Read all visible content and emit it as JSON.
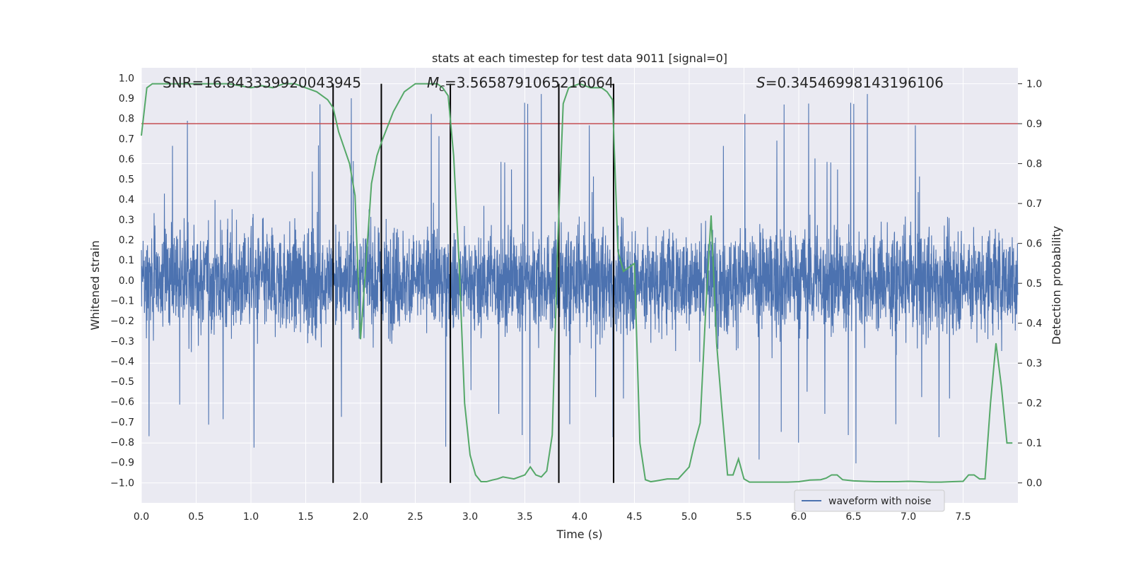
{
  "chart_data": {
    "type": "line",
    "title": "stats at each timestep for test data 9011 [signal=0]",
    "xlabel": "Time (s)",
    "ylabel_left": "Whitened strain",
    "ylabel_right": "Detection probability",
    "xlim": [
      0.0,
      8.0
    ],
    "ylim_left": [
      -1.1,
      1.05
    ],
    "ylim_right": [
      -0.05,
      1.04
    ],
    "xticks": [
      "0.0",
      "0.5",
      "1.0",
      "1.5",
      "2.0",
      "2.5",
      "3.0",
      "3.5",
      "4.0",
      "4.5",
      "5.0",
      "5.5",
      "6.0",
      "6.5",
      "7.0",
      "7.5"
    ],
    "yticks_left": [
      "1.0",
      "0.9",
      "0.8",
      "0.7",
      "0.6",
      "0.5",
      "0.4",
      "0.3",
      "0.2",
      "0.1",
      "0.0",
      "-0.1",
      "-0.2",
      "-0.3",
      "-0.4",
      "-0.5",
      "-0.6",
      "-0.7",
      "-0.8",
      "-0.9",
      "-1.0"
    ],
    "yticks_right": [
      "1.0",
      "0.9",
      "0.8",
      "0.7",
      "0.6",
      "0.5",
      "0.4",
      "0.3",
      "0.2",
      "0.1",
      "0.0"
    ],
    "grid": true,
    "legend_position": "lower-right",
    "annotations": {
      "snr": "SNR=16.843339920043945",
      "mc_symbol": "M",
      "mc_sub": "c",
      "mc_value": "=3.5658791065216064",
      "s_symbol": "S",
      "s_value": "=0.34546998143196106"
    },
    "threshold": {
      "value": 0.9,
      "axis": "right",
      "color": "#c44e52"
    },
    "vertical_lines": [
      1.75,
      2.19,
      2.82,
      3.81,
      4.31
    ],
    "series": [
      {
        "name": "waveform with noise",
        "axis": "left",
        "color": "#4c72b0",
        "style": "noise",
        "typical_amplitude": 0.4,
        "max_amplitude": 0.95
      },
      {
        "name": "detection probability",
        "axis": "right",
        "color": "#55a868",
        "show_in_legend": false,
        "x": [
          0.0,
          0.05,
          0.1,
          0.2,
          0.3,
          0.4,
          0.5,
          0.6,
          0.7,
          0.8,
          0.9,
          1.0,
          1.1,
          1.2,
          1.3,
          1.4,
          1.5,
          1.6,
          1.7,
          1.75,
          1.8,
          1.85,
          1.9,
          1.95,
          2.0,
          2.05,
          2.1,
          2.15,
          2.2,
          2.3,
          2.4,
          2.5,
          2.6,
          2.7,
          2.75,
          2.8,
          2.85,
          2.9,
          2.95,
          3.0,
          3.05,
          3.1,
          3.15,
          3.2,
          3.25,
          3.3,
          3.4,
          3.5,
          3.55,
          3.6,
          3.65,
          3.7,
          3.75,
          3.8,
          3.85,
          3.9,
          4.0,
          4.1,
          4.2,
          4.25,
          4.3,
          4.35,
          4.4,
          4.45,
          4.5,
          4.55,
          4.6,
          4.65,
          4.7,
          4.8,
          4.9,
          5.0,
          5.05,
          5.1,
          5.15,
          5.2,
          5.25,
          5.3,
          5.35,
          5.4,
          5.45,
          5.5,
          5.55,
          5.6,
          5.7,
          5.8,
          5.9,
          6.0,
          6.1,
          6.2,
          6.25,
          6.3,
          6.35,
          6.4,
          6.5,
          6.6,
          6.7,
          6.8,
          6.9,
          7.0,
          7.1,
          7.2,
          7.3,
          7.4,
          7.5,
          7.55,
          7.6,
          7.65,
          7.7,
          7.75,
          7.8,
          7.85,
          7.9,
          7.95
        ],
        "y": [
          0.87,
          0.99,
          1.0,
          1.0,
          1.0,
          1.0,
          1.0,
          1.0,
          1.0,
          1.0,
          0.995,
          0.99,
          0.995,
          0.99,
          1.0,
          1.0,
          0.99,
          0.98,
          0.96,
          0.94,
          0.88,
          0.84,
          0.8,
          0.72,
          0.36,
          0.55,
          0.75,
          0.82,
          0.86,
          0.93,
          0.98,
          1.0,
          1.0,
          1.0,
          0.99,
          0.97,
          0.82,
          0.55,
          0.2,
          0.07,
          0.02,
          0.003,
          0.003,
          0.007,
          0.01,
          0.015,
          0.01,
          0.02,
          0.04,
          0.02,
          0.015,
          0.03,
          0.12,
          0.6,
          0.95,
          0.99,
          1.0,
          0.99,
          0.99,
          0.98,
          0.96,
          0.58,
          0.53,
          0.54,
          0.55,
          0.1,
          0.008,
          0.003,
          0.005,
          0.01,
          0.01,
          0.04,
          0.1,
          0.15,
          0.43,
          0.67,
          0.35,
          0.18,
          0.02,
          0.02,
          0.06,
          0.01,
          0.002,
          0.002,
          0.002,
          0.002,
          0.002,
          0.003,
          0.007,
          0.008,
          0.012,
          0.02,
          0.02,
          0.008,
          0.005,
          0.004,
          0.003,
          0.003,
          0.003,
          0.004,
          0.003,
          0.002,
          0.002,
          0.003,
          0.004,
          0.02,
          0.02,
          0.01,
          0.01,
          0.2,
          0.35,
          0.24,
          0.1,
          0.1
        ]
      }
    ]
  }
}
